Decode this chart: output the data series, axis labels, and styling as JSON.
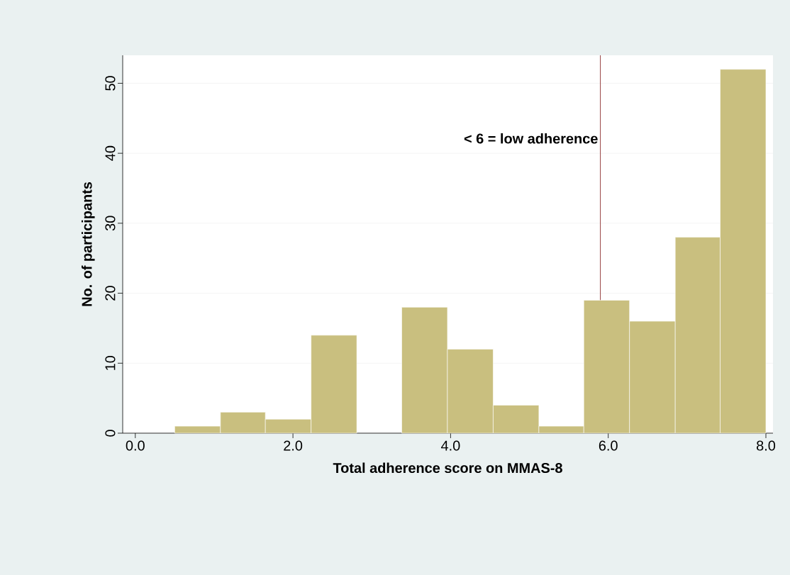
{
  "chart_data": {
    "type": "histogram",
    "xlabel": "Total adherence score on MMAS-8",
    "ylabel": "No. of participants",
    "bins": [
      0.5,
      1.08,
      1.65,
      2.23,
      2.81,
      3.38,
      3.96,
      4.54,
      5.12,
      5.69,
      6.27,
      6.85,
      7.42,
      8.0
    ],
    "values": [
      1,
      3,
      2,
      14,
      null,
      18,
      12,
      4,
      1,
      19,
      16,
      28,
      52
    ],
    "color": "#c9bf7f",
    "xlim": [
      -0.16,
      8.09
    ],
    "ylim": [
      0,
      54
    ],
    "xticks": [
      {
        "value": 0,
        "label": "0.0"
      },
      {
        "value": 2,
        "label": "2.0"
      },
      {
        "value": 4,
        "label": "4.0"
      },
      {
        "value": 6,
        "label": "6.0"
      },
      {
        "value": 8,
        "label": "8.0"
      }
    ],
    "yticks": [
      0,
      10,
      20,
      30,
      40,
      50
    ],
    "grid": "y",
    "ref_lines": [
      {
        "axis": "x",
        "value": 5.9,
        "label": "< 6 = low adherence",
        "color": "#8b2a2a"
      }
    ]
  }
}
